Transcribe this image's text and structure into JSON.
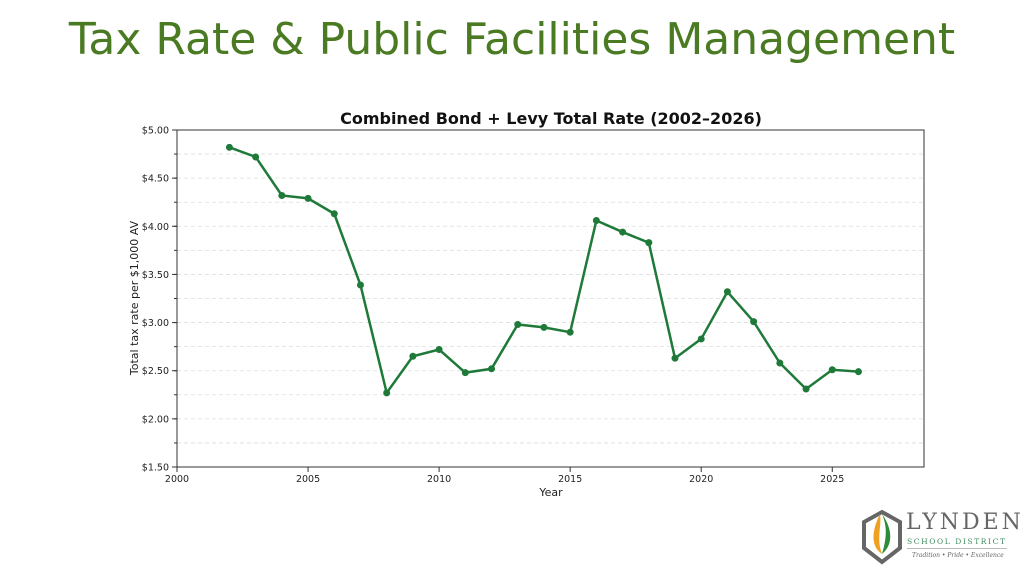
{
  "slide": {
    "title": "Tax Rate & Public Facilities Management"
  },
  "logo": {
    "name": "LYNDEN",
    "subtitle": "SCHOOL DISTRICT",
    "tagline": "Tradition • Pride • Excellence"
  },
  "colors": {
    "title": "#4a7a22",
    "series": "#1f7a3a"
  },
  "chart_data": {
    "type": "line",
    "title": "Combined Bond + Levy Total Rate (2002–2026)",
    "xlabel": "Year",
    "ylabel": "Total tax rate per $1,000 AV",
    "xlim": [
      2000,
      2028.5
    ],
    "ylim": [
      1.5,
      5.0
    ],
    "xticks": [
      2000,
      2005,
      2010,
      2015,
      2020,
      2025
    ],
    "yticks": [
      1.5,
      2.0,
      2.5,
      3.0,
      3.5,
      4.0,
      4.5,
      5.0
    ],
    "ytick_labels": [
      "$1.50",
      "$2.00",
      "$2.50",
      "$3.00",
      "$3.50",
      "$4.00",
      "$4.50",
      "$5.00"
    ],
    "grid": "horizontal dashed",
    "x": [
      2002,
      2003,
      2004,
      2005,
      2006,
      2007,
      2008,
      2009,
      2010,
      2011,
      2012,
      2013,
      2014,
      2015,
      2016,
      2017,
      2018,
      2019,
      2020,
      2021,
      2022,
      2023,
      2024,
      2025,
      2026
    ],
    "values": [
      4.82,
      4.72,
      4.32,
      4.29,
      4.13,
      3.39,
      2.27,
      2.65,
      2.72,
      2.48,
      2.52,
      2.98,
      2.95,
      2.9,
      4.06,
      3.94,
      3.83,
      2.63,
      2.83,
      3.32,
      3.01,
      2.58,
      2.31,
      2.51,
      2.49
    ]
  }
}
